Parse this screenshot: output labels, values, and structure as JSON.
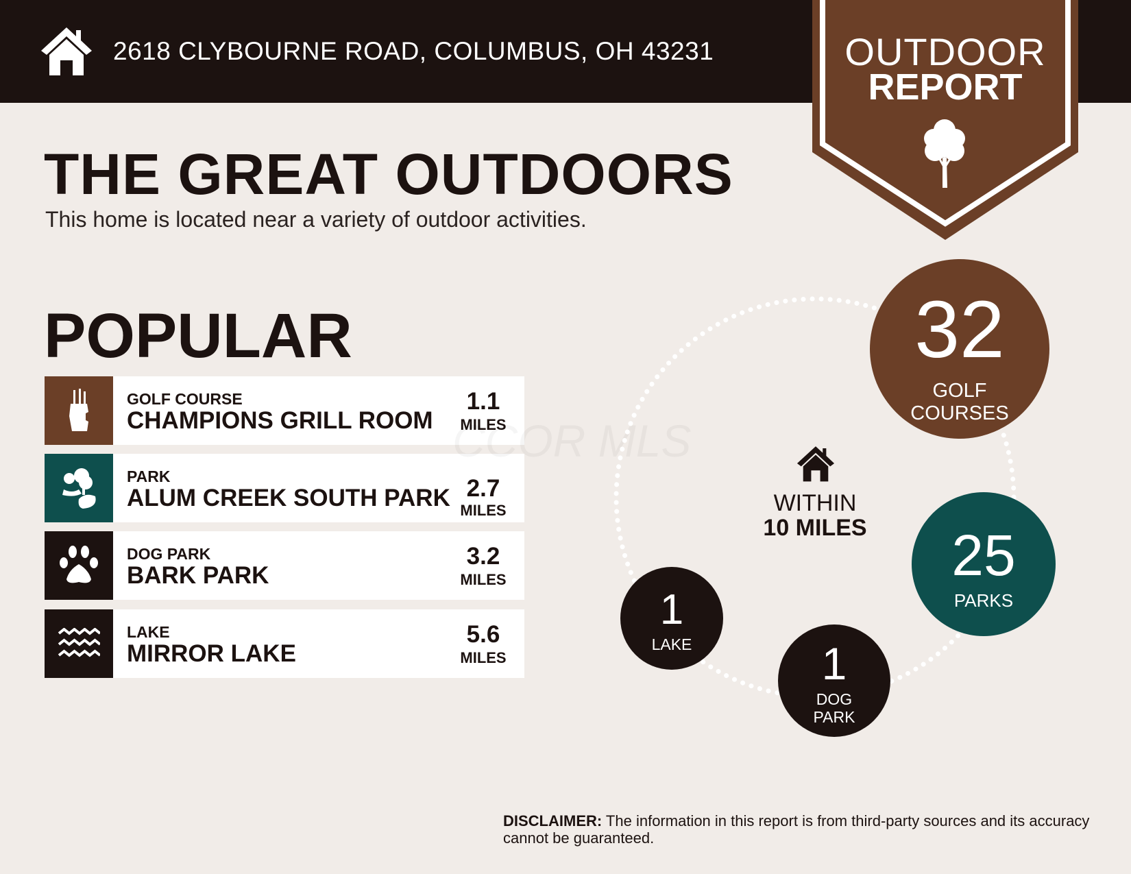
{
  "header": {
    "address": "2618 CLYBOURNE ROAD, COLUMBUS, OH 43231",
    "icon": "home-icon"
  },
  "badge": {
    "line1": "OUTDOOR",
    "line2": "REPORT",
    "icon": "tree-icon"
  },
  "title": "THE GREAT OUTDOORS",
  "subtitle": "This home is located near a variety of outdoor activities.",
  "popular": {
    "heading": "POPULAR",
    "items": [
      {
        "category": "GOLF COURSE",
        "name": "CHAMPIONS GRILL ROOM",
        "distance": "1.1",
        "unit": "MILES",
        "icon": "golf-bag-icon",
        "color": "#6b3f27"
      },
      {
        "category": "PARK",
        "name": "ALUM CREEK SOUTH PARK",
        "distance": "2.7",
        "unit": "MILES",
        "icon": "park-trees-icon",
        "color": "#0e4f4d"
      },
      {
        "category": "DOG PARK",
        "name": "BARK PARK",
        "distance": "3.2",
        "unit": "MILES",
        "icon": "paw-icon",
        "color": "#1c1210"
      },
      {
        "category": "LAKE",
        "name": "MIRROR LAKE",
        "distance": "5.6",
        "unit": "MILES",
        "icon": "waves-icon",
        "color": "#1c1210"
      }
    ]
  },
  "nearby": {
    "within_line1": "WITHIN",
    "within_line2": "10 MILES",
    "golf": {
      "count": "32",
      "label1": "GOLF",
      "label2": "COURSES",
      "color": "#6b3f27"
    },
    "parks": {
      "count": "25",
      "label1": "PARKS",
      "color": "#0e4f4d"
    },
    "lake": {
      "count": "1",
      "label1": "LAKE",
      "color": "#1c1210"
    },
    "dog": {
      "count": "1",
      "label1": "DOG",
      "label2": "PARK",
      "color": "#1c1210"
    }
  },
  "watermark": "CCOR MLS",
  "disclaimer": {
    "bold": "DISCLAIMER:",
    "text": " The information in this report is from third-party sources and its accuracy cannot be guaranteed."
  }
}
